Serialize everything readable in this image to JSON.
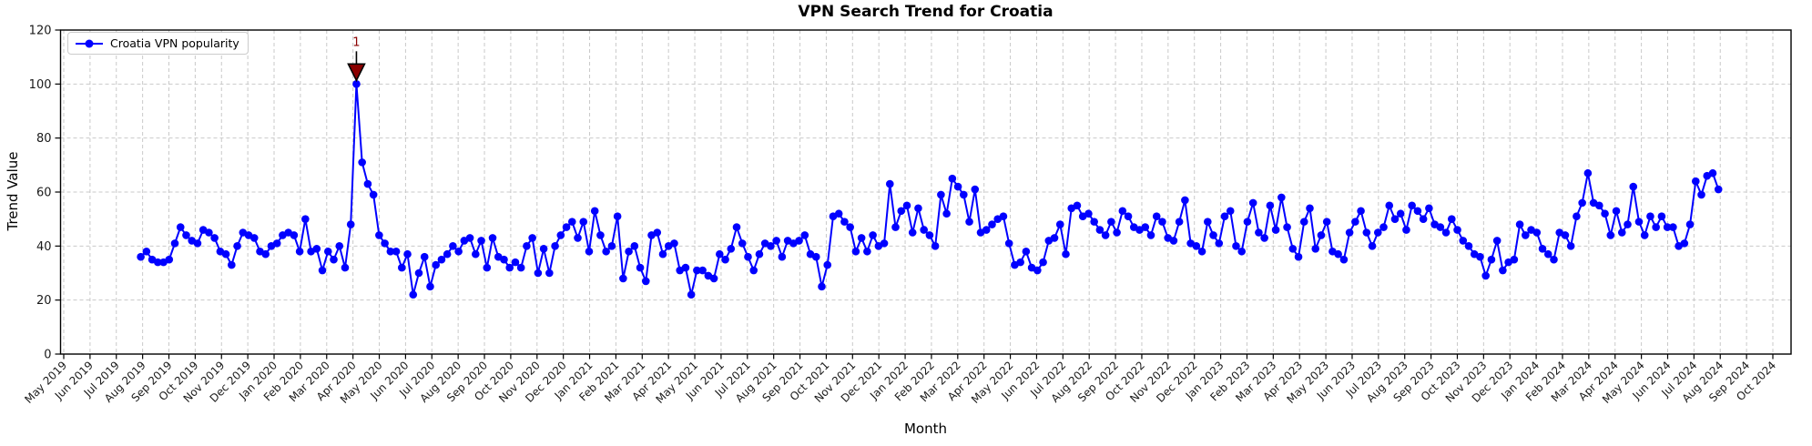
{
  "chart_data": {
    "type": "line",
    "title": "VPN Search Trend for Croatia",
    "xlabel": "Month",
    "ylabel": "Trend Value",
    "ylim": [
      0,
      120
    ],
    "yticks": [
      0,
      20,
      40,
      60,
      80,
      100,
      120
    ],
    "grid": true,
    "grid_style": "dashed",
    "legend_position": "upper left",
    "x_tick_labels": [
      "May 2019",
      "Jun 2019",
      "Jul 2019",
      "Aug 2019",
      "Sep 2019",
      "Oct 2019",
      "Nov 2019",
      "Dec 2019",
      "Jan 2020",
      "Feb 2020",
      "Mar 2020",
      "Apr 2020",
      "May 2020",
      "Jun 2020",
      "Jul 2020",
      "Aug 2020",
      "Sep 2020",
      "Oct 2020",
      "Nov 2020",
      "Dec 2020",
      "Jan 2021",
      "Feb 2021",
      "Mar 2021",
      "Apr 2021",
      "May 2021",
      "Jun 2021",
      "Jul 2021",
      "Aug 2021",
      "Sep 2021",
      "Oct 2021",
      "Nov 2021",
      "Dec 2021",
      "Jan 2022",
      "Feb 2022",
      "Mar 2022",
      "Apr 2022",
      "May 2022",
      "Jun 2022",
      "Jul 2022",
      "Aug 2022",
      "Sep 2022",
      "Oct 2022",
      "Nov 2022",
      "Dec 2022",
      "Jan 2023",
      "Feb 2023",
      "Mar 2023",
      "Apr 2023",
      "May 2023",
      "Jun 2023",
      "Jul 2023",
      "Aug 2023",
      "Sep 2023",
      "Oct 2023",
      "Nov 2023",
      "Dec 2023",
      "Jan 2024",
      "Feb 2024",
      "Mar 2024",
      "Apr 2024",
      "May 2024",
      "Jun 2024",
      "Jul 2024",
      "Aug 2024",
      "Sep 2024",
      "Oct 2024"
    ],
    "series": [
      {
        "name": "Croatia VPN popularity",
        "color": "#0000ff",
        "marker": "circle",
        "cadence": "weekly",
        "first_point_month_index": 2.93,
        "last_point_month_index": 62.93,
        "values": [
          36,
          38,
          35,
          34,
          34,
          35,
          41,
          47,
          44,
          42,
          41,
          46,
          45,
          43,
          38,
          37,
          33,
          40,
          45,
          44,
          43,
          38,
          37,
          40,
          41,
          44,
          45,
          44,
          38,
          50,
          38,
          39,
          31,
          38,
          35,
          40,
          32,
          48,
          100,
          71,
          63,
          59,
          44,
          41,
          38,
          38,
          32,
          37,
          22,
          30,
          36,
          25,
          33,
          35,
          37,
          40,
          38,
          42,
          43,
          37,
          42,
          32,
          43,
          36,
          35,
          32,
          34,
          32,
          40,
          43,
          30,
          39,
          30,
          40,
          44,
          47,
          49,
          43,
          49,
          38,
          53,
          44,
          38,
          40,
          51,
          28,
          38,
          40,
          32,
          27,
          44,
          45,
          37,
          40,
          41,
          31,
          32,
          22,
          31,
          31,
          29,
          28,
          37,
          35,
          39,
          47,
          41,
          36,
          31,
          37,
          41,
          40,
          42,
          36,
          42,
          41,
          42,
          44,
          37,
          36,
          25,
          33,
          51,
          52,
          49,
          47,
          38,
          43,
          38,
          44,
          40,
          41,
          63,
          47,
          53,
          55,
          45,
          54,
          46,
          44,
          40,
          59,
          52,
          65,
          62,
          59,
          49,
          61,
          45,
          46,
          48,
          50,
          51,
          41,
          33,
          34,
          38,
          32,
          31,
          34,
          42,
          43,
          48,
          37,
          54,
          55,
          51,
          52,
          49,
          46,
          44,
          49,
          45,
          53,
          51,
          47,
          46,
          47,
          44,
          51,
          49,
          43,
          42,
          49,
          57,
          41,
          40,
          38,
          49,
          44,
          41,
          51,
          53,
          40,
          38,
          49,
          56,
          45,
          43,
          55,
          46,
          58,
          47,
          39,
          36,
          49,
          54,
          39,
          44,
          49,
          38,
          37,
          35,
          45,
          49,
          53,
          45,
          40,
          45,
          47,
          55,
          50,
          52,
          46,
          55,
          53,
          50,
          54,
          48,
          47,
          45,
          50,
          46,
          42,
          40,
          37,
          36,
          29,
          35,
          42,
          31,
          34,
          35,
          48,
          44,
          46,
          45,
          39,
          37,
          35,
          45,
          44,
          40,
          51,
          56,
          67,
          56,
          55,
          52,
          44,
          53,
          45,
          48,
          62,
          49,
          44,
          51,
          47,
          51,
          47,
          47,
          40,
          41,
          48,
          64,
          59,
          66,
          67,
          61
        ]
      }
    ],
    "annotation": {
      "label": "1",
      "color": "#8b0000",
      "edge_color": "#000000",
      "attached_to": "max-value-point",
      "peak_value": 100
    },
    "colors": {
      "grid": "#c9c9c9",
      "axis": "#000000",
      "tick_text": "#1a1a1a"
    }
  }
}
